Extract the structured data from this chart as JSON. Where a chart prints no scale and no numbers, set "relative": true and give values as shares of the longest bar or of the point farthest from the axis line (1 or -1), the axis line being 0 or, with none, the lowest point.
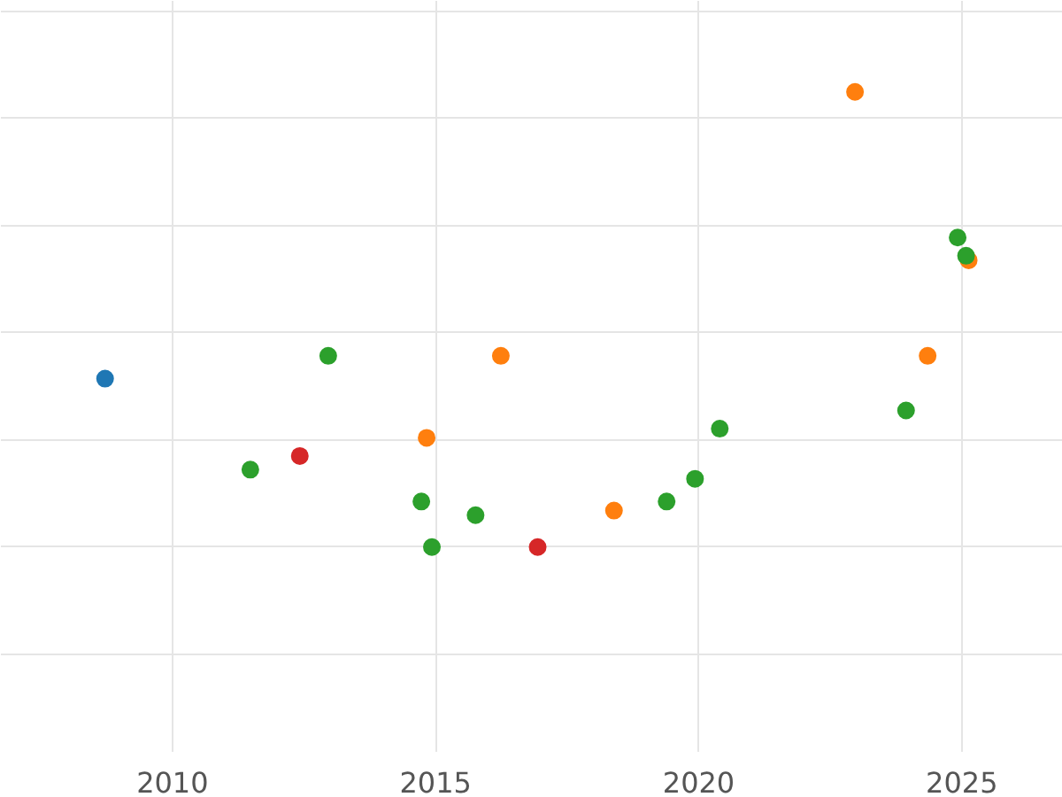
{
  "chart_data": {
    "type": "scatter",
    "relative": true,
    "grid": true,
    "marker": "circle",
    "xlim": [
      2006.74,
      2026.92
    ],
    "xticks": [
      2010,
      2015,
      2020,
      2025
    ],
    "series": [
      {
        "color": "#1f77b4",
        "x": [
          2008.72
        ],
        "values": [
          0.37
        ]
      },
      {
        "color": "#ff7f0e",
        "x": [
          2014.83,
          2016.24,
          2018.39,
          2022.97,
          2024.35,
          2025.13
        ],
        "values": [
          0.24,
          0.42,
          0.08,
          1.0,
          0.42,
          0.63
        ]
      },
      {
        "color": "#2ca02c",
        "x": [
          2011.48,
          2012.96,
          2014.73,
          2014.93,
          2015.76,
          2019.39,
          2019.93,
          2020.4,
          2023.94,
          2024.92,
          2025.08
        ],
        "values": [
          0.17,
          0.42,
          0.1,
          0.0,
          0.07,
          0.1,
          0.15,
          0.26,
          0.3,
          0.68,
          0.64
        ]
      },
      {
        "color": "#d62728",
        "x": [
          2012.42,
          2016.94
        ],
        "values": [
          0.2,
          0.0
        ]
      }
    ]
  }
}
